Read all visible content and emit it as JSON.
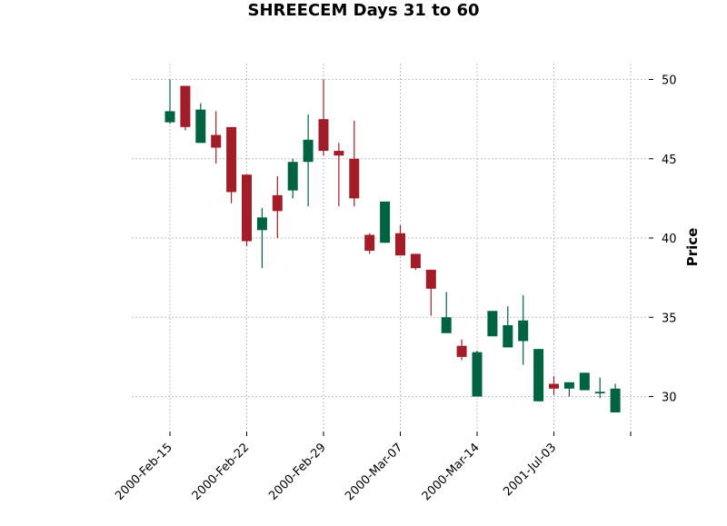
{
  "chart_data": {
    "type": "candlestick",
    "title": "SHREECEM Days 31 to 60",
    "xlabel": "",
    "ylabel": "Price",
    "ylim": [
      28,
      51
    ],
    "y_ticks": [
      30,
      35,
      40,
      45,
      50
    ],
    "y_axis_position": "right",
    "grid": true,
    "colors": {
      "up": "#006340",
      "down": "#a21d27"
    },
    "x_tick_labels": [
      {
        "label": "2000-Feb-15",
        "index": 0
      },
      {
        "label": "2000-Feb-22",
        "index": 5
      },
      {
        "label": "2000-Feb-29",
        "index": 10
      },
      {
        "label": "2000-Mar-07",
        "index": 15
      },
      {
        "label": "2000-Mar-14",
        "index": 20
      },
      {
        "label": "2001-Jul-03",
        "index": 25
      },
      {
        "label": "",
        "index": 30
      }
    ],
    "candles": [
      {
        "open": 47.3,
        "high": 50.0,
        "low": 47.2,
        "close": 48.0
      },
      {
        "open": 49.6,
        "high": 49.6,
        "low": 46.8,
        "close": 47.0
      },
      {
        "open": 46.0,
        "high": 48.5,
        "low": 46.0,
        "close": 48.1
      },
      {
        "open": 46.5,
        "high": 48.0,
        "low": 44.7,
        "close": 45.7
      },
      {
        "open": 47.0,
        "high": 47.0,
        "low": 42.2,
        "close": 42.9
      },
      {
        "open": 44.0,
        "high": 44.0,
        "low": 39.5,
        "close": 39.8
      },
      {
        "open": 40.5,
        "high": 41.9,
        "low": 38.1,
        "close": 41.3
      },
      {
        "open": 42.7,
        "high": 43.9,
        "low": 40.0,
        "close": 41.7
      },
      {
        "open": 43.0,
        "high": 45.0,
        "low": 42.5,
        "close": 44.8
      },
      {
        "open": 44.8,
        "high": 47.8,
        "low": 42.0,
        "close": 46.2
      },
      {
        "open": 47.5,
        "high": 50.0,
        "low": 45.2,
        "close": 45.5
      },
      {
        "open": 45.5,
        "high": 46.0,
        "low": 42.0,
        "close": 45.2
      },
      {
        "open": 45.0,
        "high": 47.4,
        "low": 42.0,
        "close": 42.5
      },
      {
        "open": 40.2,
        "high": 40.3,
        "low": 39.0,
        "close": 39.2
      },
      {
        "open": 39.7,
        "high": 42.3,
        "low": 39.7,
        "close": 42.3
      },
      {
        "open": 40.3,
        "high": 40.8,
        "low": 38.9,
        "close": 38.9
      },
      {
        "open": 39.0,
        "high": 39.0,
        "low": 38.0,
        "close": 38.1
      },
      {
        "open": 38.0,
        "high": 38.0,
        "low": 35.1,
        "close": 36.8
      },
      {
        "open": 34.0,
        "high": 36.6,
        "low": 34.0,
        "close": 35.0
      },
      {
        "open": 33.2,
        "high": 33.6,
        "low": 32.3,
        "close": 32.5
      },
      {
        "open": 30.0,
        "high": 32.9,
        "low": 30.0,
        "close": 32.8
      },
      {
        "open": 33.8,
        "high": 35.4,
        "low": 33.8,
        "close": 35.4
      },
      {
        "open": 33.1,
        "high": 35.7,
        "low": 33.1,
        "close": 34.5
      },
      {
        "open": 33.5,
        "high": 36.4,
        "low": 32.0,
        "close": 34.8
      },
      {
        "open": 29.7,
        "high": 33.0,
        "low": 29.7,
        "close": 33.0
      },
      {
        "open": 30.8,
        "high": 31.3,
        "low": 30.1,
        "close": 30.5
      },
      {
        "open": 30.5,
        "high": 30.9,
        "low": 30.0,
        "close": 30.9
      },
      {
        "open": 30.4,
        "high": 31.5,
        "low": 30.4,
        "close": 31.5
      },
      {
        "open": 30.2,
        "high": 31.2,
        "low": 29.9,
        "close": 30.3
      },
      {
        "open": 29.0,
        "high": 30.8,
        "low": 29.0,
        "close": 30.5
      }
    ]
  }
}
